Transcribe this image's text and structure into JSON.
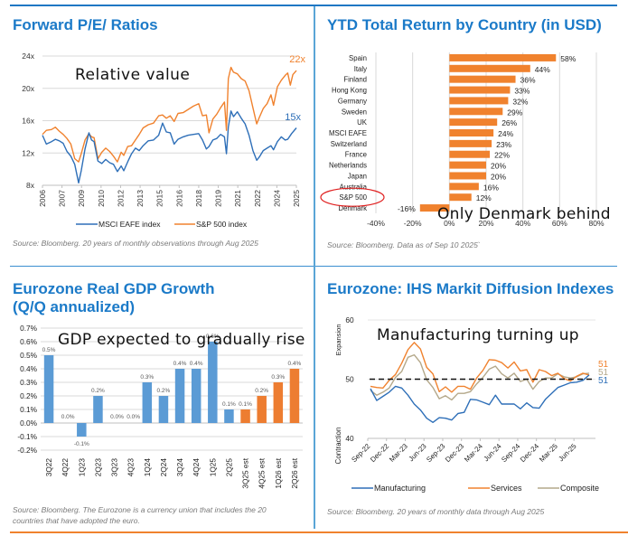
{
  "colors": {
    "title_blue": "#1b7ac8",
    "divider_blue": "#1f77c4",
    "accent_orange": "#f0822e",
    "eafe_blue": "#2e6fb8",
    "sp_orange": "#f0822e",
    "gdp_blue": "#5b9bd5",
    "gdp_orange": "#ed7d31",
    "composite_tan": "#b4a88a",
    "grid": "#d9d9d9"
  },
  "chart_data": [
    {
      "id": "pe",
      "type": "line",
      "title": "Forward P/E/ Ratios",
      "annotation": "Relative value",
      "source": "Source: Bloomberg. 20 years of monthly observations through Aug 2025",
      "xlabel": "",
      "ylabel": "",
      "x_range": [
        2006,
        2025.67
      ],
      "ylim": [
        8,
        24
      ],
      "yticks": [
        8,
        12,
        16,
        20,
        24
      ],
      "ytick_labels": [
        "8x",
        "12x",
        "16x",
        "20x",
        "24x"
      ],
      "xtick_labels": [
        "2006",
        "2007",
        "2009",
        "2010",
        "2012",
        "2013",
        "2015",
        "2016",
        "2018",
        "2019",
        "2021",
        "2022",
        "2024",
        "2025"
      ],
      "grid": true,
      "legend": "bottom",
      "end_labels": [
        "22x",
        "15x"
      ],
      "series": [
        {
          "name": "MSCI EAFE index",
          "end_label": "15x",
          "points": [
            [
              2006.0,
              14.2
            ],
            [
              2006.3,
              13.1
            ],
            [
              2006.7,
              13.4
            ],
            [
              2007.0,
              13.7
            ],
            [
              2007.3,
              13.5
            ],
            [
              2007.6,
              13.2
            ],
            [
              2007.9,
              12.2
            ],
            [
              2008.2,
              11.6
            ],
            [
              2008.5,
              10.6
            ],
            [
              2008.8,
              8.3
            ],
            [
              2009.0,
              9.8
            ],
            [
              2009.3,
              12.5
            ],
            [
              2009.6,
              14.5
            ],
            [
              2009.8,
              13.6
            ],
            [
              2010.0,
              13.4
            ],
            [
              2010.3,
              11.0
            ],
            [
              2010.6,
              10.7
            ],
            [
              2010.9,
              11.2
            ],
            [
              2011.2,
              10.8
            ],
            [
              2011.5,
              10.6
            ],
            [
              2011.8,
              9.7
            ],
            [
              2012.1,
              10.4
            ],
            [
              2012.3,
              9.8
            ],
            [
              2012.6,
              10.9
            ],
            [
              2012.9,
              11.9
            ],
            [
              2013.2,
              12.6
            ],
            [
              2013.5,
              12.3
            ],
            [
              2013.8,
              12.9
            ],
            [
              2014.2,
              13.5
            ],
            [
              2014.6,
              13.6
            ],
            [
              2015.0,
              14.2
            ],
            [
              2015.3,
              15.7
            ],
            [
              2015.6,
              14.6
            ],
            [
              2015.9,
              14.5
            ],
            [
              2016.2,
              13.1
            ],
            [
              2016.5,
              13.7
            ],
            [
              2016.9,
              14.0
            ],
            [
              2017.3,
              14.2
            ],
            [
              2017.7,
              14.3
            ],
            [
              2018.1,
              14.4
            ],
            [
              2018.4,
              13.6
            ],
            [
              2018.7,
              12.5
            ],
            [
              2018.9,
              12.8
            ],
            [
              2019.2,
              13.6
            ],
            [
              2019.5,
              13.8
            ],
            [
              2019.8,
              14.3
            ],
            [
              2020.1,
              14.0
            ],
            [
              2020.25,
              11.9
            ],
            [
              2020.4,
              15.2
            ],
            [
              2020.6,
              17.2
            ],
            [
              2020.8,
              16.5
            ],
            [
              2021.1,
              17.1
            ],
            [
              2021.4,
              16.3
            ],
            [
              2021.7,
              15.6
            ],
            [
              2022.0,
              14.2
            ],
            [
              2022.3,
              12.3
            ],
            [
              2022.6,
              11.1
            ],
            [
              2022.8,
              11.5
            ],
            [
              2023.1,
              12.3
            ],
            [
              2023.4,
              12.6
            ],
            [
              2023.7,
              12.9
            ],
            [
              2023.9,
              12.4
            ],
            [
              2024.2,
              13.4
            ],
            [
              2024.5,
              14.0
            ],
            [
              2024.8,
              13.6
            ],
            [
              2025.0,
              13.7
            ],
            [
              2025.3,
              14.4
            ],
            [
              2025.67,
              15.1
            ]
          ]
        },
        {
          "name": "S&P 500 index",
          "end_label": "22x",
          "points": [
            [
              2006.0,
              14.3
            ],
            [
              2006.3,
              14.8
            ],
            [
              2006.7,
              14.9
            ],
            [
              2007.0,
              15.2
            ],
            [
              2007.3,
              14.7
            ],
            [
              2007.6,
              14.3
            ],
            [
              2007.9,
              13.8
            ],
            [
              2008.2,
              13.1
            ],
            [
              2008.5,
              11.3
            ],
            [
              2008.8,
              10.9
            ],
            [
              2009.0,
              11.9
            ],
            [
              2009.3,
              13.6
            ],
            [
              2009.6,
              14.4
            ],
            [
              2009.8,
              14.0
            ],
            [
              2010.0,
              13.9
            ],
            [
              2010.3,
              11.3
            ],
            [
              2010.6,
              12.1
            ],
            [
              2010.9,
              12.6
            ],
            [
              2011.2,
              12.2
            ],
            [
              2011.5,
              11.6
            ],
            [
              2011.8,
              10.9
            ],
            [
              2012.1,
              12.1
            ],
            [
              2012.3,
              11.7
            ],
            [
              2012.6,
              12.8
            ],
            [
              2012.9,
              12.9
            ],
            [
              2013.2,
              13.6
            ],
            [
              2013.5,
              14.3
            ],
            [
              2013.8,
              15.1
            ],
            [
              2014.2,
              15.5
            ],
            [
              2014.6,
              15.7
            ],
            [
              2015.0,
              16.6
            ],
            [
              2015.3,
              16.7
            ],
            [
              2015.6,
              16.3
            ],
            [
              2015.9,
              16.6
            ],
            [
              2016.2,
              15.9
            ],
            [
              2016.5,
              16.9
            ],
            [
              2016.9,
              17.0
            ],
            [
              2017.3,
              17.4
            ],
            [
              2017.7,
              17.8
            ],
            [
              2018.1,
              18.1
            ],
            [
              2018.4,
              16.6
            ],
            [
              2018.7,
              16.7
            ],
            [
              2018.9,
              14.5
            ],
            [
              2019.2,
              16.2
            ],
            [
              2019.5,
              16.8
            ],
            [
              2019.8,
              17.6
            ],
            [
              2020.1,
              18.3
            ],
            [
              2020.25,
              14.8
            ],
            [
              2020.4,
              21.2
            ],
            [
              2020.6,
              22.6
            ],
            [
              2020.8,
              22.0
            ],
            [
              2021.1,
              21.8
            ],
            [
              2021.4,
              21.2
            ],
            [
              2021.7,
              20.9
            ],
            [
              2022.0,
              19.7
            ],
            [
              2022.3,
              17.6
            ],
            [
              2022.6,
              15.6
            ],
            [
              2022.8,
              16.4
            ],
            [
              2023.1,
              17.5
            ],
            [
              2023.4,
              18.1
            ],
            [
              2023.7,
              19.2
            ],
            [
              2023.9,
              17.9
            ],
            [
              2024.2,
              20.2
            ],
            [
              2024.5,
              21.0
            ],
            [
              2024.8,
              21.6
            ],
            [
              2025.0,
              21.9
            ],
            [
              2025.2,
              20.4
            ],
            [
              2025.4,
              21.7
            ],
            [
              2025.67,
              22.2
            ]
          ]
        }
      ]
    },
    {
      "id": "ytd",
      "type": "bar",
      "orientation": "horizontal",
      "title": "YTD Total Return by Country (in USD)",
      "annotation": "Only Denmark behind",
      "highlighted_category": "S&P 500",
      "source": "Source: Bloomberg. Data as of Sep 10 2025`",
      "xlim": [
        -40,
        80
      ],
      "xticks": [
        -40,
        -20,
        0,
        20,
        40,
        60,
        80
      ],
      "xtick_labels": [
        "-40%",
        "-20%",
        "0%",
        "20%",
        "40%",
        "60%",
        "80%"
      ],
      "categories": [
        "Spain",
        "Italy",
        "Finland",
        "Hong Kong",
        "Germany",
        "Sweden",
        "UK",
        "MSCI EAFE",
        "Switzerland",
        "France",
        "Netherlands",
        "Japan",
        "Australia",
        "S&P 500",
        "Denmark"
      ],
      "values": [
        58,
        44,
        36,
        33,
        32,
        29,
        26,
        24,
        23,
        22,
        20,
        20,
        16,
        12,
        -16
      ],
      "value_labels": [
        "58%",
        "44%",
        "36%",
        "33%",
        "32%",
        "29%",
        "26%",
        "24%",
        "23%",
        "22%",
        "20%",
        "20%",
        "16%",
        "12%",
        "-16%"
      ],
      "grid": true,
      "xlabel": "",
      "ylabel": ""
    },
    {
      "id": "gdp",
      "type": "bar",
      "title_line1": "Eurozone Real GDP Growth",
      "title_line2": "(Q/Q annualized)",
      "annotation": "GDP expected to gradually rise",
      "source_line1": "Source: Bloomberg. The Eurozone is a currency union that includes the 20",
      "source_line2": "countries that have adopted the euro.",
      "ylim": [
        -0.2,
        0.7
      ],
      "yticks": [
        -0.2,
        -0.1,
        0.0,
        0.1,
        0.2,
        0.3,
        0.4,
        0.5,
        0.6,
        0.7
      ],
      "ytick_labels": [
        "-0.2%",
        "-0.1%",
        "0.0%",
        "0.1%",
        "0.2%",
        "0.3%",
        "0.4%",
        "0.5%",
        "0.6%",
        "0.7%"
      ],
      "categories": [
        "3Q22",
        "4Q22",
        "1Q23",
        "2Q23",
        "3Q23",
        "4Q23",
        "1Q24",
        "2Q24",
        "3Q24",
        "4Q24",
        "1Q25",
        "2Q25",
        "3Q25 est",
        "4Q25 est",
        "1Q26 est",
        "2Q26 est"
      ],
      "values": [
        0.5,
        0.0,
        -0.1,
        0.2,
        0.0,
        0.0,
        0.3,
        0.2,
        0.4,
        0.4,
        0.6,
        0.1,
        0.1,
        0.2,
        0.3,
        0.4
      ],
      "value_labels": [
        "0.5%",
        "0.0%",
        "-0.1%",
        "0.2%",
        "0.0%",
        "0.0%",
        "0.3%",
        "0.2%",
        "0.4%",
        "0.4%",
        "0.6%",
        "0.1%",
        "0.1%",
        "0.2%",
        "0.3%",
        "0.4%"
      ],
      "is_estimate": [
        false,
        false,
        false,
        false,
        false,
        false,
        false,
        false,
        false,
        false,
        false,
        false,
        true,
        true,
        true,
        true
      ],
      "grid": true,
      "xlabel": "",
      "ylabel": ""
    },
    {
      "id": "pmi",
      "type": "line",
      "title": "Eurozone: IHS Markit Diffusion Indexes",
      "annotation": "Manufacturing turning up",
      "source": "Source: Bloomberg. 20 years of monthly data through Aug 2025",
      "ylim": [
        40,
        60
      ],
      "yticks": [
        40,
        50,
        60
      ],
      "ytick_labels": [
        "40",
        "50",
        "60"
      ],
      "ylabel_top": "Expansion",
      "ylabel_bottom": "Contraction",
      "reference_line": 50,
      "x_start": "Sep-22",
      "xtick_labels": [
        "Sep-22",
        "Dec-22",
        "Mar-23",
        "Jun-23",
        "Sep-23",
        "Dec-23",
        "Mar-24",
        "Jun-24",
        "Sep-24",
        "Dec-24",
        "Mar-25",
        "Jun-25"
      ],
      "legend": "bottom",
      "grid": true,
      "series": [
        {
          "name": "Manufacturing",
          "end_label": "51",
          "values": [
            48.4,
            46.4,
            47.1,
            47.8,
            48.8,
            48.5,
            47.3,
            45.8,
            44.8,
            43.4,
            42.7,
            43.5,
            43.4,
            43.1,
            44.2,
            44.4,
            46.6,
            46.5,
            46.1,
            45.7,
            47.3,
            45.8,
            45.8,
            45.8,
            45.0,
            46.0,
            45.2,
            45.1,
            46.6,
            47.6,
            48.6,
            49.0,
            49.4,
            49.5,
            49.8,
            50.7
          ]
        },
        {
          "name": "Services",
          "end_label": "51",
          "values": [
            48.8,
            48.6,
            48.5,
            49.8,
            50.8,
            52.7,
            55.0,
            56.2,
            55.1,
            52.0,
            50.9,
            47.9,
            48.7,
            47.8,
            48.8,
            48.8,
            48.3,
            50.2,
            51.5,
            53.3,
            53.2,
            52.8,
            51.9,
            52.9,
            51.4,
            51.6,
            49.5,
            51.6,
            51.3,
            50.6,
            51.0,
            50.1,
            49.7,
            50.5,
            51.0,
            50.7
          ]
        },
        {
          "name": "Composite",
          "end_label": "51",
          "values": [
            48.1,
            47.3,
            47.8,
            48.5,
            50.3,
            51.3,
            53.7,
            54.1,
            52.8,
            49.9,
            48.6,
            46.7,
            47.2,
            46.5,
            47.6,
            47.6,
            47.9,
            49.2,
            50.3,
            51.7,
            52.2,
            50.9,
            50.2,
            51.0,
            49.6,
            50.0,
            48.3,
            49.6,
            50.2,
            50.2,
            50.9,
            50.4,
            50.2,
            50.4,
            50.9,
            51.0
          ]
        }
      ]
    }
  ]
}
